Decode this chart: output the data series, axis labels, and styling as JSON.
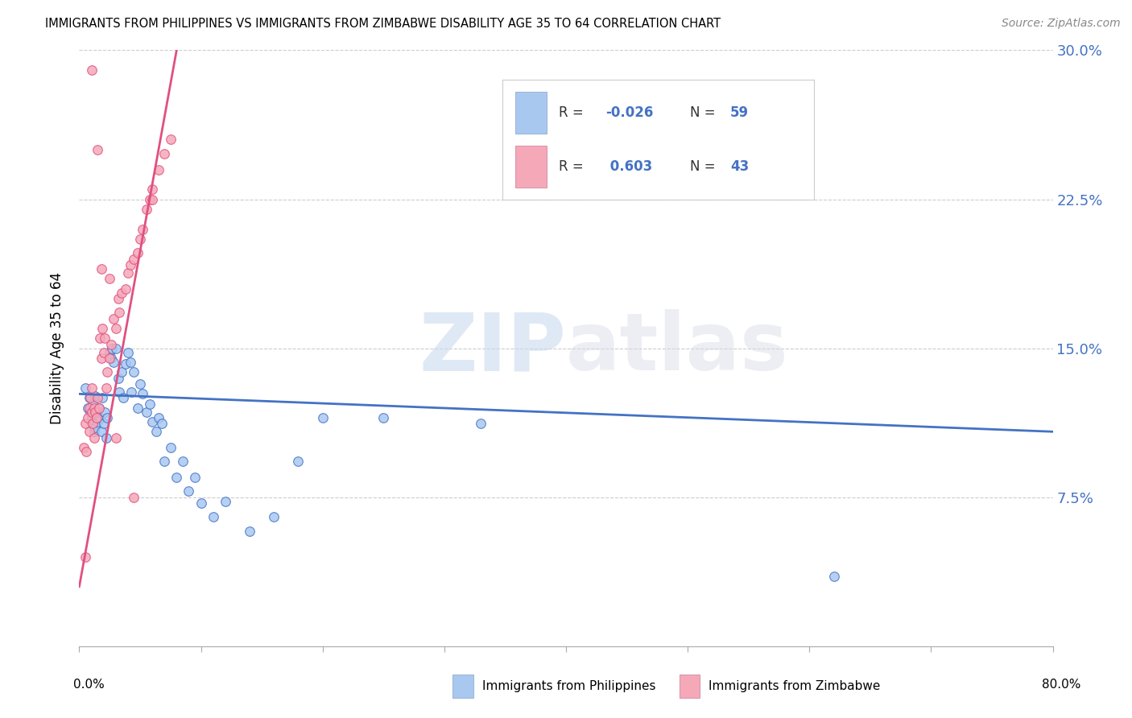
{
  "title": "IMMIGRANTS FROM PHILIPPINES VS IMMIGRANTS FROM ZIMBABWE DISABILITY AGE 35 TO 64 CORRELATION CHART",
  "source": "Source: ZipAtlas.com",
  "ylabel": "Disability Age 35 to 64",
  "yticks": [
    "7.5%",
    "15.0%",
    "22.5%",
    "30.0%"
  ],
  "ytick_values": [
    0.075,
    0.15,
    0.225,
    0.3
  ],
  "xlim": [
    0.0,
    0.8
  ],
  "ylim": [
    0.0,
    0.3
  ],
  "r_philippines": -0.026,
  "n_philippines": 59,
  "r_zimbabwe": 0.603,
  "n_zimbabwe": 43,
  "color_philippines": "#a8c8f0",
  "color_zimbabwe": "#f5a8b8",
  "color_philippines_line": "#4472c4",
  "color_zimbabwe_line": "#e05080",
  "legend_label_philippines": "Immigrants from Philippines",
  "legend_label_zimbabwe": "Immigrants from Zimbabwe",
  "watermark_zip": "ZIP",
  "watermark_atlas": "atlas",
  "philippines_x": [
    0.005,
    0.007,
    0.008,
    0.009,
    0.01,
    0.01,
    0.011,
    0.012,
    0.013,
    0.013,
    0.014,
    0.015,
    0.016,
    0.017,
    0.018,
    0.019,
    0.02,
    0.021,
    0.022,
    0.023,
    0.025,
    0.026,
    0.027,
    0.028,
    0.03,
    0.032,
    0.033,
    0.035,
    0.036,
    0.038,
    0.04,
    0.042,
    0.043,
    0.045,
    0.048,
    0.05,
    0.052,
    0.055,
    0.058,
    0.06,
    0.063,
    0.065,
    0.068,
    0.07,
    0.075,
    0.08,
    0.085,
    0.09,
    0.095,
    0.1,
    0.11,
    0.12,
    0.14,
    0.16,
    0.18,
    0.2,
    0.25,
    0.33,
    0.62
  ],
  "philippines_y": [
    0.13,
    0.12,
    0.125,
    0.118,
    0.115,
    0.112,
    0.122,
    0.108,
    0.126,
    0.11,
    0.118,
    0.113,
    0.12,
    0.115,
    0.108,
    0.125,
    0.112,
    0.118,
    0.105,
    0.115,
    0.148,
    0.145,
    0.15,
    0.143,
    0.15,
    0.135,
    0.128,
    0.138,
    0.125,
    0.142,
    0.148,
    0.143,
    0.128,
    0.138,
    0.12,
    0.132,
    0.127,
    0.118,
    0.122,
    0.113,
    0.108,
    0.115,
    0.112,
    0.093,
    0.1,
    0.085,
    0.093,
    0.078,
    0.085,
    0.072,
    0.065,
    0.073,
    0.058,
    0.065,
    0.093,
    0.115,
    0.115,
    0.112,
    0.035
  ],
  "zimbabwe_x": [
    0.004,
    0.005,
    0.006,
    0.007,
    0.008,
    0.008,
    0.009,
    0.01,
    0.01,
    0.011,
    0.012,
    0.012,
    0.013,
    0.014,
    0.015,
    0.016,
    0.017,
    0.018,
    0.019,
    0.02,
    0.021,
    0.022,
    0.023,
    0.025,
    0.026,
    0.028,
    0.03,
    0.032,
    0.033,
    0.035,
    0.038,
    0.04,
    0.042,
    0.045,
    0.048,
    0.05,
    0.052,
    0.055,
    0.058,
    0.06,
    0.065,
    0.07,
    0.075
  ],
  "zimbabwe_y": [
    0.1,
    0.112,
    0.098,
    0.115,
    0.108,
    0.12,
    0.125,
    0.118,
    0.13,
    0.112,
    0.12,
    0.105,
    0.118,
    0.115,
    0.125,
    0.12,
    0.155,
    0.145,
    0.16,
    0.148,
    0.155,
    0.13,
    0.138,
    0.145,
    0.152,
    0.165,
    0.16,
    0.175,
    0.168,
    0.178,
    0.18,
    0.188,
    0.192,
    0.195,
    0.198,
    0.205,
    0.21,
    0.22,
    0.225,
    0.23,
    0.24,
    0.248,
    0.255
  ],
  "zimbabwe_outliers_x": [
    0.005,
    0.01,
    0.015,
    0.018,
    0.025,
    0.03,
    0.045,
    0.06
  ],
  "zimbabwe_outliers_y": [
    0.045,
    0.29,
    0.25,
    0.19,
    0.185,
    0.105,
    0.075,
    0.225
  ],
  "phil_trendline_x": [
    0.0,
    0.8
  ],
  "phil_trendline_y": [
    0.127,
    0.108
  ],
  "zimb_trendline_x": [
    0.0,
    0.08
  ],
  "zimb_trendline_y": [
    0.03,
    0.3
  ]
}
